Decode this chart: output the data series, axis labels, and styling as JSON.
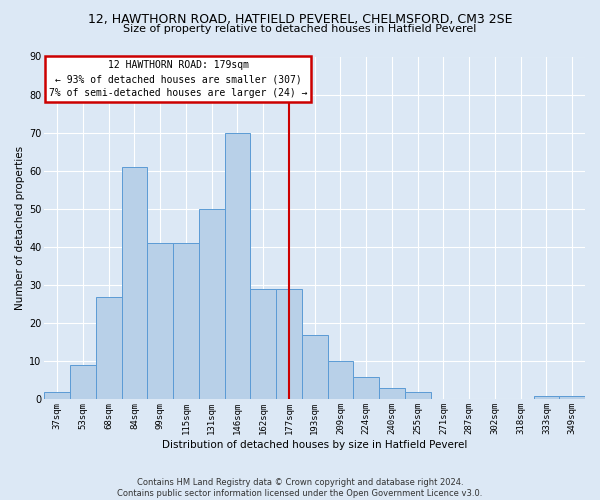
{
  "title": "12, HAWTHORN ROAD, HATFIELD PEVEREL, CHELMSFORD, CM3 2SE",
  "subtitle": "Size of property relative to detached houses in Hatfield Peverel",
  "xlabel": "Distribution of detached houses by size in Hatfield Peverel",
  "ylabel": "Number of detached properties",
  "categories": [
    "37sqm",
    "53sqm",
    "68sqm",
    "84sqm",
    "99sqm",
    "115sqm",
    "131sqm",
    "146sqm",
    "162sqm",
    "177sqm",
    "193sqm",
    "209sqm",
    "224sqm",
    "240sqm",
    "255sqm",
    "271sqm",
    "287sqm",
    "302sqm",
    "318sqm",
    "333sqm",
    "349sqm"
  ],
  "values": [
    2,
    9,
    27,
    61,
    41,
    41,
    50,
    70,
    29,
    29,
    17,
    10,
    6,
    3,
    2,
    0,
    0,
    0,
    0,
    1,
    1
  ],
  "bar_color": "#b8d0e8",
  "bar_edge_color": "#5b9bd5",
  "vline_index": 9,
  "annotation_line1": "12 HAWTHORN ROAD: 179sqm",
  "annotation_line2": "← 93% of detached houses are smaller (307)",
  "annotation_line3": "7% of semi-detached houses are larger (24) →",
  "annotation_box_facecolor": "#ffffff",
  "annotation_box_edgecolor": "#cc0000",
  "vline_color": "#cc0000",
  "ylim_max": 90,
  "ytick_step": 10,
  "bg_color": "#dce8f5",
  "grid_color": "#ffffff",
  "footer_line1": "Contains HM Land Registry data © Crown copyright and database right 2024.",
  "footer_line2": "Contains public sector information licensed under the Open Government Licence v3.0.",
  "title_fontsize": 9,
  "subtitle_fontsize": 8,
  "axis_label_fontsize": 7.5,
  "tick_fontsize": 6.5,
  "footer_fontsize": 6,
  "annotation_fontsize": 7
}
